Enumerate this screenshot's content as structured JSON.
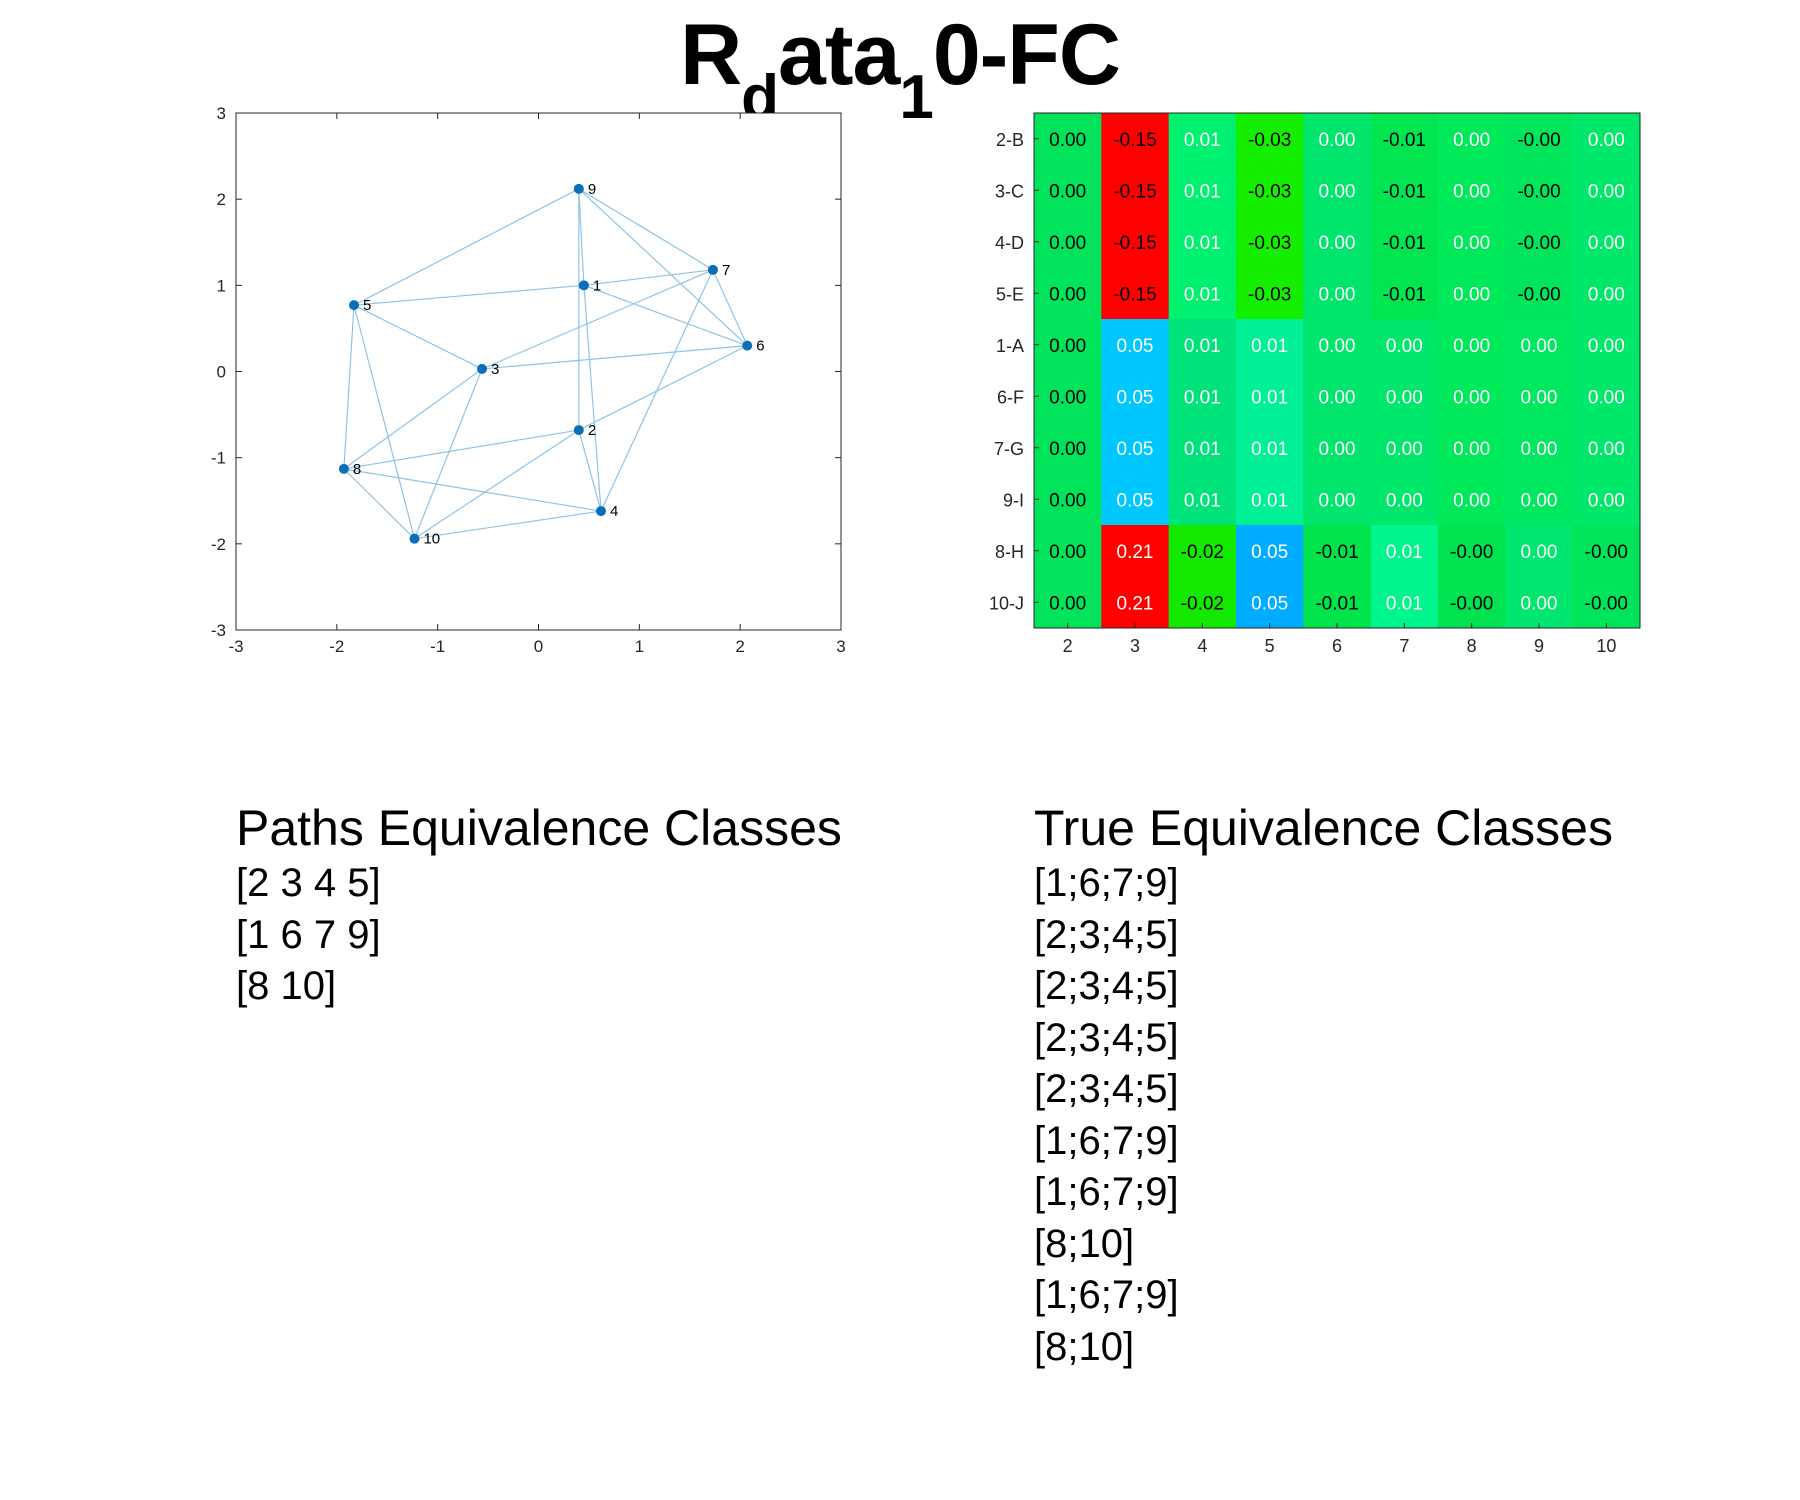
{
  "title": {
    "parts": [
      {
        "text": "R",
        "sub": false
      },
      {
        "text": "d",
        "sub": true
      },
      {
        "text": "ata",
        "sub": false
      },
      {
        "text": "1",
        "sub": true
      },
      {
        "text": "0-FC",
        "sub": false
      }
    ]
  },
  "chart_data": [
    {
      "type": "scatter",
      "subtype": "graph",
      "title": "",
      "xlabel": "",
      "ylabel": "",
      "xlim": [
        -3,
        3
      ],
      "ylim": [
        -3,
        3
      ],
      "xticks": [
        "-3",
        "-2",
        "-1",
        "0",
        "1",
        "2",
        "3"
      ],
      "yticks": [
        "-3",
        "-2",
        "-1",
        "0",
        "1",
        "2",
        "3"
      ],
      "grid": false,
      "node_color": "#0b6eb8",
      "edge_color": "#8fc3e6",
      "nodes": [
        {
          "label": "1",
          "x": 0.45,
          "y": 1.0
        },
        {
          "label": "2",
          "x": 0.4,
          "y": -0.68
        },
        {
          "label": "3",
          "x": -0.56,
          "y": 0.03
        },
        {
          "label": "4",
          "x": 0.62,
          "y": -1.62
        },
        {
          "label": "5",
          "x": -1.83,
          "y": 0.77
        },
        {
          "label": "6",
          "x": 2.07,
          "y": 0.3
        },
        {
          "label": "7",
          "x": 1.73,
          "y": 1.18
        },
        {
          "label": "8",
          "x": -1.93,
          "y": -1.13
        },
        {
          "label": "9",
          "x": 0.4,
          "y": 2.12
        },
        {
          "label": "10",
          "x": -1.23,
          "y": -1.94
        }
      ],
      "edges": [
        [
          "9",
          "5"
        ],
        [
          "9",
          "1"
        ],
        [
          "9",
          "2"
        ],
        [
          "9",
          "7"
        ],
        [
          "9",
          "6"
        ],
        [
          "5",
          "1"
        ],
        [
          "5",
          "3"
        ],
        [
          "5",
          "8"
        ],
        [
          "5",
          "10"
        ],
        [
          "1",
          "7"
        ],
        [
          "1",
          "6"
        ],
        [
          "1",
          "4"
        ],
        [
          "7",
          "6"
        ],
        [
          "7",
          "3"
        ],
        [
          "7",
          "4"
        ],
        [
          "3",
          "6"
        ],
        [
          "3",
          "8"
        ],
        [
          "3",
          "10"
        ],
        [
          "6",
          "2"
        ],
        [
          "2",
          "8"
        ],
        [
          "2",
          "10"
        ],
        [
          "2",
          "4"
        ],
        [
          "8",
          "4"
        ],
        [
          "8",
          "10"
        ],
        [
          "10",
          "4"
        ]
      ]
    },
    {
      "type": "heatmap",
      "title": "",
      "x": [
        "2",
        "3",
        "4",
        "5",
        "6",
        "7",
        "8",
        "9",
        "10"
      ],
      "y": [
        "2-B",
        "3-C",
        "4-D",
        "5-E",
        "1-A",
        "6-F",
        "7-G",
        "9-I",
        "8-H",
        "10-J"
      ],
      "values": [
        [
          0.0,
          -0.15,
          0.01,
          -0.03,
          0.0,
          -0.01,
          0.0,
          -0.0,
          0.0
        ],
        [
          0.0,
          -0.15,
          0.01,
          -0.03,
          0.0,
          -0.01,
          0.0,
          -0.0,
          0.0
        ],
        [
          0.0,
          -0.15,
          0.01,
          -0.03,
          0.0,
          -0.01,
          0.0,
          -0.0,
          0.0
        ],
        [
          0.0,
          -0.15,
          0.01,
          -0.03,
          0.0,
          -0.01,
          0.0,
          -0.0,
          0.0
        ],
        [
          0.0,
          0.05,
          0.01,
          0.01,
          0.0,
          0.0,
          0.0,
          0.0,
          0.0
        ],
        [
          0.0,
          0.05,
          0.01,
          0.01,
          0.0,
          0.0,
          0.0,
          0.0,
          0.0
        ],
        [
          0.0,
          0.05,
          0.01,
          0.01,
          0.0,
          0.0,
          0.0,
          0.0,
          0.0
        ],
        [
          0.0,
          0.05,
          0.01,
          0.01,
          0.0,
          0.0,
          0.0,
          0.0,
          0.0
        ],
        [
          0.0,
          0.21,
          -0.02,
          0.05,
          -0.01,
          0.01,
          -0.0,
          0.0,
          -0.0
        ],
        [
          0.0,
          0.21,
          -0.02,
          0.05,
          -0.01,
          0.01,
          -0.0,
          0.0,
          -0.0
        ]
      ],
      "labels": [
        [
          "0.00",
          "-0.15",
          "0.01",
          "-0.03",
          "0.00",
          "-0.01",
          "0.00",
          "-0.00",
          "0.00"
        ],
        [
          "0.00",
          "-0.15",
          "0.01",
          "-0.03",
          "0.00",
          "-0.01",
          "0.00",
          "-0.00",
          "0.00"
        ],
        [
          "0.00",
          "-0.15",
          "0.01",
          "-0.03",
          "0.00",
          "-0.01",
          "0.00",
          "-0.00",
          "0.00"
        ],
        [
          "0.00",
          "-0.15",
          "0.01",
          "-0.03",
          "0.00",
          "-0.01",
          "0.00",
          "-0.00",
          "0.00"
        ],
        [
          "0.00",
          "0.05",
          "0.01",
          "0.01",
          "0.00",
          "0.00",
          "0.00",
          "0.00",
          "0.00"
        ],
        [
          "0.00",
          "0.05",
          "0.01",
          "0.01",
          "0.00",
          "0.00",
          "0.00",
          "0.00",
          "0.00"
        ],
        [
          "0.00",
          "0.05",
          "0.01",
          "0.01",
          "0.00",
          "0.00",
          "0.00",
          "0.00",
          "0.00"
        ],
        [
          "0.00",
          "0.05",
          "0.01",
          "0.01",
          "0.00",
          "0.00",
          "0.00",
          "0.00",
          "0.00"
        ],
        [
          "0.00",
          "0.21",
          "-0.02",
          "0.05",
          "-0.01",
          "0.01",
          "-0.00",
          "0.00",
          "-0.00"
        ],
        [
          "0.00",
          "0.21",
          "-0.02",
          "0.05",
          "-0.01",
          "0.01",
          "-0.00",
          "0.00",
          "-0.00"
        ]
      ],
      "cell_colors": [
        [
          "#00e35a",
          "#ff0000",
          "#00f16f",
          "#14ef00",
          "#00e56c",
          "#00e550",
          "#00e95a",
          "#00e55c",
          "#00e86a"
        ],
        [
          "#00e35a",
          "#ff0000",
          "#00f16f",
          "#14ef00",
          "#00e56c",
          "#00e550",
          "#00e95a",
          "#00e55c",
          "#00e86a"
        ],
        [
          "#00e35a",
          "#ff0000",
          "#00f16f",
          "#14ef00",
          "#00e56c",
          "#00e550",
          "#00e95a",
          "#00e55c",
          "#00e86a"
        ],
        [
          "#00e35a",
          "#ff0000",
          "#00f16f",
          "#14ef00",
          "#00e56c",
          "#00e550",
          "#00e95a",
          "#00e55c",
          "#00e86a"
        ],
        [
          "#00e35a",
          "#00c8ff",
          "#00e37a",
          "#00f195",
          "#00e56c",
          "#00e86c",
          "#00e95a",
          "#00e860",
          "#00e86a"
        ],
        [
          "#00e35a",
          "#00c8ff",
          "#00e37a",
          "#00f195",
          "#00e56c",
          "#00e86c",
          "#00e95a",
          "#00e860",
          "#00e86a"
        ],
        [
          "#00e35a",
          "#00c8ff",
          "#00e37a",
          "#00f195",
          "#00e56c",
          "#00e86c",
          "#00e95a",
          "#00e860",
          "#00e86a"
        ],
        [
          "#00e35a",
          "#00c8ff",
          "#00e37a",
          "#00f195",
          "#00e56c",
          "#00e86c",
          "#00e95a",
          "#00e860",
          "#00e86a"
        ],
        [
          "#00e35a",
          "#ff0000",
          "#12e800",
          "#00acff",
          "#00e34a",
          "#00f58c",
          "#00e250",
          "#00e66e",
          "#00e45a"
        ],
        [
          "#00e35a",
          "#ff0000",
          "#12e800",
          "#00acff",
          "#00e34a",
          "#00f58c",
          "#00e250",
          "#00e66e",
          "#00e45a"
        ]
      ],
      "dark_text_cells": [
        [
          true,
          true,
          false,
          true,
          false,
          true,
          false,
          true,
          false
        ],
        [
          true,
          true,
          false,
          true,
          false,
          true,
          false,
          true,
          false
        ],
        [
          true,
          true,
          false,
          true,
          false,
          true,
          false,
          true,
          false
        ],
        [
          true,
          true,
          false,
          true,
          false,
          true,
          false,
          true,
          false
        ],
        [
          true,
          false,
          false,
          false,
          false,
          false,
          false,
          false,
          false
        ],
        [
          true,
          false,
          false,
          false,
          false,
          false,
          false,
          false,
          false
        ],
        [
          true,
          false,
          false,
          false,
          false,
          false,
          false,
          false,
          false
        ],
        [
          true,
          false,
          false,
          false,
          false,
          false,
          false,
          false,
          false
        ],
        [
          true,
          false,
          true,
          false,
          true,
          false,
          true,
          false,
          true
        ],
        [
          true,
          false,
          true,
          false,
          true,
          false,
          true,
          false,
          true
        ]
      ]
    }
  ],
  "paths_equivalence": {
    "title": "Paths Equivalence Classes",
    "classes": [
      "[2 3 4 5]",
      "[1 6 7 9]",
      "[8 10]"
    ]
  },
  "true_equivalence": {
    "title": "True Equivalence Classes",
    "classes": [
      "[1;6;7;9]",
      "[2;3;4;5]",
      "[2;3;4;5]",
      "[2;3;4;5]",
      "[2;3;4;5]",
      "[1;6;7;9]",
      "[1;6;7;9]",
      "[8;10]",
      "[1;6;7;9]",
      "[8;10]"
    ]
  }
}
